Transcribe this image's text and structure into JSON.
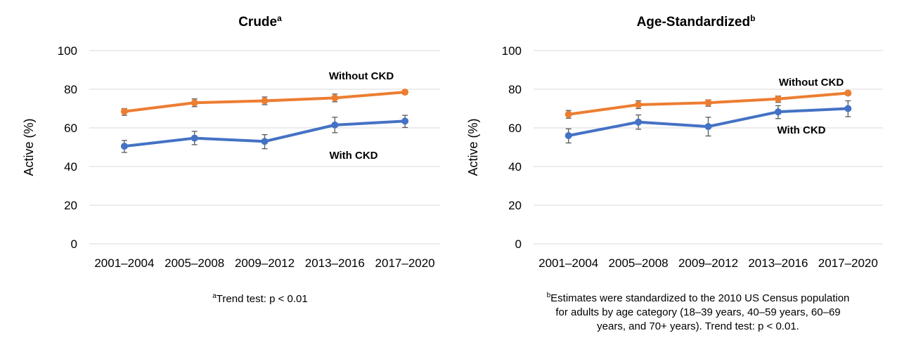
{
  "chart_data": [
    {
      "type": "line",
      "title": "Crude",
      "title_superscript": "a",
      "ylabel": "Active (%)",
      "xlabel": "",
      "categories": [
        "2001–2004",
        "2005–2008",
        "2009–2012",
        "2013–2016",
        "2017–2020"
      ],
      "ylim": [
        0,
        100
      ],
      "yticks": [
        0,
        20,
        40,
        60,
        80,
        100
      ],
      "grid": true,
      "series": [
        {
          "name": "Without CKD",
          "color": "#ED7D31",
          "values": [
            68.5,
            73.0,
            74.0,
            75.5,
            78.5
          ],
          "error_low": [
            66.5,
            71.0,
            72.0,
            73.5,
            77.5
          ],
          "error_high": [
            70.0,
            75.0,
            76.0,
            77.5,
            79.5
          ]
        },
        {
          "name": "With CKD",
          "color": "#4472C4",
          "values": [
            50.5,
            54.7,
            53.0,
            61.5,
            63.5
          ],
          "error_low": [
            47.3,
            51.3,
            49.2,
            57.5,
            60.2
          ],
          "error_high": [
            53.5,
            58.2,
            56.5,
            65.5,
            66.5
          ]
        }
      ],
      "footnote_superscript": "a",
      "footnote": [
        "Trend test: p < 0.01"
      ]
    },
    {
      "type": "line",
      "title": "Age-Standardized",
      "title_superscript": "b",
      "ylabel": "Active (%)",
      "xlabel": "",
      "categories": [
        "2001–2004",
        "2005–2008",
        "2009–2012",
        "2013–2016",
        "2017–2020"
      ],
      "ylim": [
        0,
        100
      ],
      "yticks": [
        0,
        20,
        40,
        60,
        80,
        100
      ],
      "grid": true,
      "series": [
        {
          "name": "Without CKD",
          "color": "#ED7D31",
          "values": [
            67.0,
            72.0,
            73.0,
            75.0,
            78.0
          ],
          "error_low": [
            65.0,
            70.0,
            71.2,
            73.2,
            77.0
          ],
          "error_high": [
            69.0,
            74.0,
            74.5,
            76.5,
            79.0
          ]
        },
        {
          "name": "With CKD",
          "color": "#4472C4",
          "values": [
            56.0,
            63.0,
            60.7,
            68.3,
            70.0
          ],
          "error_low": [
            52.2,
            59.3,
            55.8,
            64.8,
            65.8
          ],
          "error_high": [
            59.5,
            66.7,
            65.5,
            71.5,
            74.0
          ]
        }
      ],
      "footnote_superscript": "b",
      "footnote": [
        "Estimates were standardized to the 2010 US Census population",
        "for adults by age category (18–39 years, 40–59 years, 60–69",
        "years, and 70+ years). Trend test: p < 0.01."
      ]
    }
  ]
}
